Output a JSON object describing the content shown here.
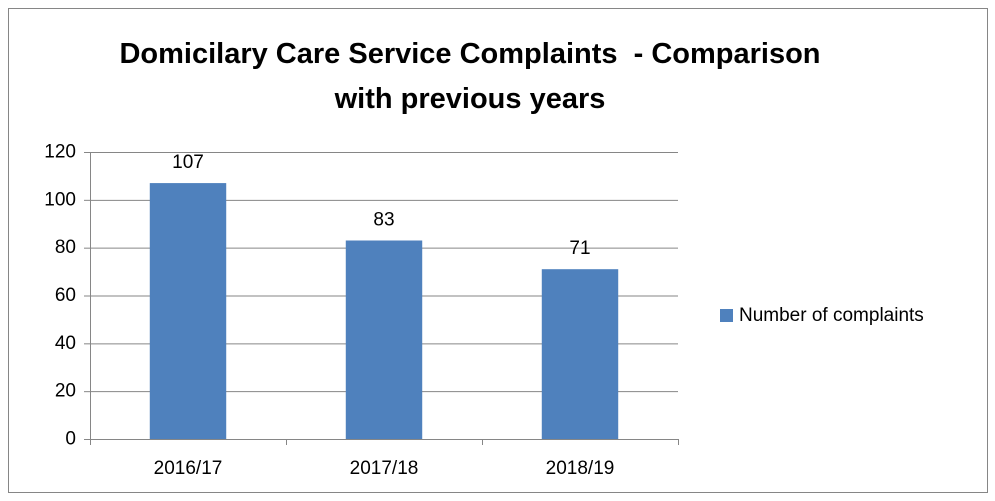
{
  "chart_data": {
    "type": "bar",
    "title": "Domicilary Care Service Complaints  - Comparison with previous years",
    "categories": [
      "2016/17",
      "2017/18",
      "2018/19"
    ],
    "series": [
      {
        "name": "Number of complaints",
        "color": "#4f81bd",
        "values": [
          107,
          83,
          71
        ]
      }
    ],
    "ylim": [
      0,
      120
    ],
    "yticks": [
      0,
      20,
      40,
      60,
      80,
      100,
      120
    ],
    "grid": true,
    "legend": "right",
    "data_labels": true
  }
}
